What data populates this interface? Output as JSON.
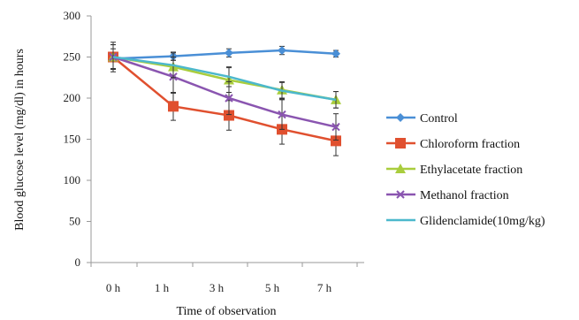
{
  "chart_data": {
    "type": "line",
    "xlabel": "Time of observation",
    "ylabel": "Blood glucose level (mg/dl) in hours",
    "ylim": [
      0,
      300
    ],
    "yticks": [
      0,
      50,
      100,
      150,
      200,
      250,
      300
    ],
    "categories": [
      "0 h",
      "1 h",
      "3 h",
      "5 h",
      "7 h"
    ],
    "legend_position": "right",
    "error_bars": true,
    "series": [
      {
        "name": "Control",
        "color": "#4a8fd6",
        "marker": "diamond",
        "values": [
          248,
          251,
          255,
          258,
          254
        ],
        "errors": [
          12,
          5,
          5,
          5,
          4
        ]
      },
      {
        "name": "Chloroform fraction",
        "color": "#e0502f",
        "marker": "square",
        "values": [
          250,
          190,
          179,
          162,
          148
        ],
        "errors": [
          18,
          17,
          18,
          18,
          18
        ]
      },
      {
        "name": "Ethylacetate fraction",
        "color": "#a9cd3d",
        "marker": "triangle",
        "values": [
          250,
          238,
          222,
          210,
          198
        ],
        "errors": [
          15,
          12,
          15,
          10,
          10
        ]
      },
      {
        "name": "Methanol fraction",
        "color": "#8a55b0",
        "marker": "cross",
        "values": [
          250,
          226,
          200,
          180,
          165
        ],
        "errors": [
          15,
          20,
          20,
          18,
          16
        ]
      },
      {
        "name": "Glidenclamide(10mg/kg)",
        "color": "#4cb8cc",
        "marker": "none",
        "values": [
          250,
          240,
          226,
          209,
          198
        ],
        "errors": [
          15,
          15,
          12,
          10,
          10
        ]
      }
    ]
  }
}
